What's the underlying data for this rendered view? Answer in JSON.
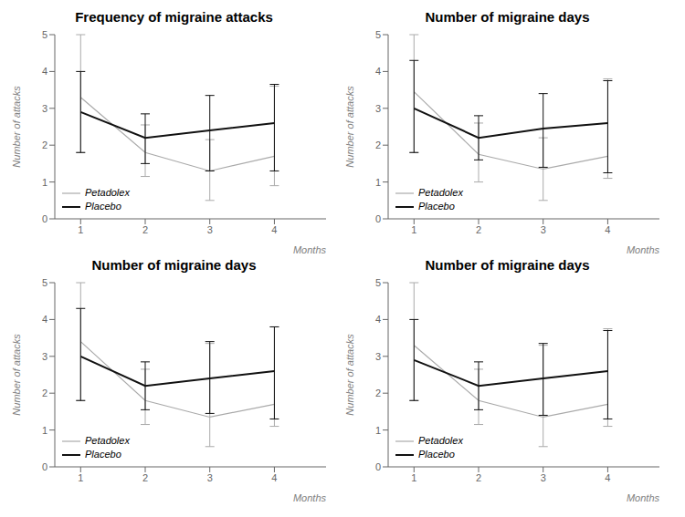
{
  "chart_data": [
    {
      "type": "line",
      "title": "Frequency of migraine attacks",
      "x": [
        1,
        2,
        3,
        4
      ],
      "xlabel": "Months",
      "ylabel": "Number of attacks",
      "xlim": [
        0.6,
        4.8
      ],
      "ylim": [
        0,
        5
      ],
      "xticks": [
        1,
        2,
        3,
        4
      ],
      "yticks": [
        0,
        1,
        2,
        3,
        4,
        5
      ],
      "grid": false,
      "legend": "lower left",
      "series": [
        {
          "name": "Petadolex",
          "color": "#aaaaaa",
          "values": [
            3.3,
            1.8,
            1.3,
            1.7
          ],
          "yerr_low": [
            1.5,
            0.65,
            0.8,
            0.8
          ],
          "yerr_high": [
            1.7,
            0.75,
            0.85,
            1.9
          ]
        },
        {
          "name": "Placebo",
          "color": "#111111",
          "values": [
            2.9,
            2.2,
            2.4,
            2.6
          ],
          "yerr_low": [
            1.1,
            0.7,
            1.1,
            1.3
          ],
          "yerr_high": [
            1.1,
            0.65,
            0.95,
            1.05
          ]
        }
      ]
    },
    {
      "type": "line",
      "title": "Number of migraine days",
      "x": [
        1,
        2,
        3,
        4
      ],
      "xlabel": "Months",
      "ylabel": "Number of attacks",
      "xlim": [
        0.6,
        4.8
      ],
      "ylim": [
        0,
        5
      ],
      "xticks": [
        1,
        2,
        3,
        4
      ],
      "yticks": [
        0,
        1,
        2,
        3,
        4,
        5
      ],
      "grid": false,
      "legend": "lower left",
      "series": [
        {
          "name": "Petadolex",
          "color": "#aaaaaa",
          "values": [
            3.45,
            1.75,
            1.35,
            1.7
          ],
          "yerr_low": [
            1.65,
            0.75,
            0.85,
            0.6
          ],
          "yerr_high": [
            1.55,
            0.85,
            0.85,
            2.1
          ]
        },
        {
          "name": "Placebo",
          "color": "#111111",
          "values": [
            3.0,
            2.2,
            2.45,
            2.6
          ],
          "yerr_low": [
            1.2,
            0.6,
            1.05,
            1.35
          ],
          "yerr_high": [
            1.3,
            0.6,
            0.95,
            1.15
          ]
        }
      ]
    },
    {
      "type": "line",
      "title": "Number of migraine days",
      "x": [
        1,
        2,
        3,
        4
      ],
      "xlabel": "Months",
      "ylabel": "Number of attacks",
      "xlim": [
        0.6,
        4.8
      ],
      "ylim": [
        0,
        5
      ],
      "xticks": [
        1,
        2,
        3,
        4
      ],
      "yticks": [
        0,
        1,
        2,
        3,
        4,
        5
      ],
      "grid": false,
      "legend": "lower left",
      "series": [
        {
          "name": "Petadolex",
          "color": "#aaaaaa",
          "values": [
            3.4,
            1.8,
            1.35,
            1.7
          ],
          "yerr_low": [
            1.6,
            0.65,
            0.8,
            0.6
          ],
          "yerr_high": [
            1.6,
            0.85,
            2.0,
            2.1
          ]
        },
        {
          "name": "Placebo",
          "color": "#111111",
          "values": [
            3.0,
            2.2,
            2.4,
            2.6
          ],
          "yerr_low": [
            1.2,
            0.65,
            0.95,
            1.3
          ],
          "yerr_high": [
            1.3,
            0.65,
            1.0,
            1.2
          ]
        }
      ]
    },
    {
      "type": "line",
      "title": "Number of migraine days",
      "x": [
        1,
        2,
        3,
        4
      ],
      "xlabel": "Months",
      "ylabel": "Number of attacks",
      "xlim": [
        0.6,
        4.8
      ],
      "ylim": [
        0,
        5
      ],
      "xticks": [
        1,
        2,
        3,
        4
      ],
      "yticks": [
        0,
        1,
        2,
        3,
        4,
        5
      ],
      "grid": false,
      "legend": "lower left",
      "series": [
        {
          "name": "Petadolex",
          "color": "#aaaaaa",
          "values": [
            3.3,
            1.8,
            1.35,
            1.7
          ],
          "yerr_low": [
            1.5,
            0.65,
            0.8,
            0.6
          ],
          "yerr_high": [
            1.7,
            0.85,
            1.95,
            2.05
          ]
        },
        {
          "name": "Placebo",
          "color": "#111111",
          "values": [
            2.9,
            2.2,
            2.4,
            2.6
          ],
          "yerr_low": [
            1.1,
            0.65,
            1.0,
            1.3
          ],
          "yerr_high": [
            1.1,
            0.65,
            0.95,
            1.1
          ]
        }
      ]
    }
  ]
}
